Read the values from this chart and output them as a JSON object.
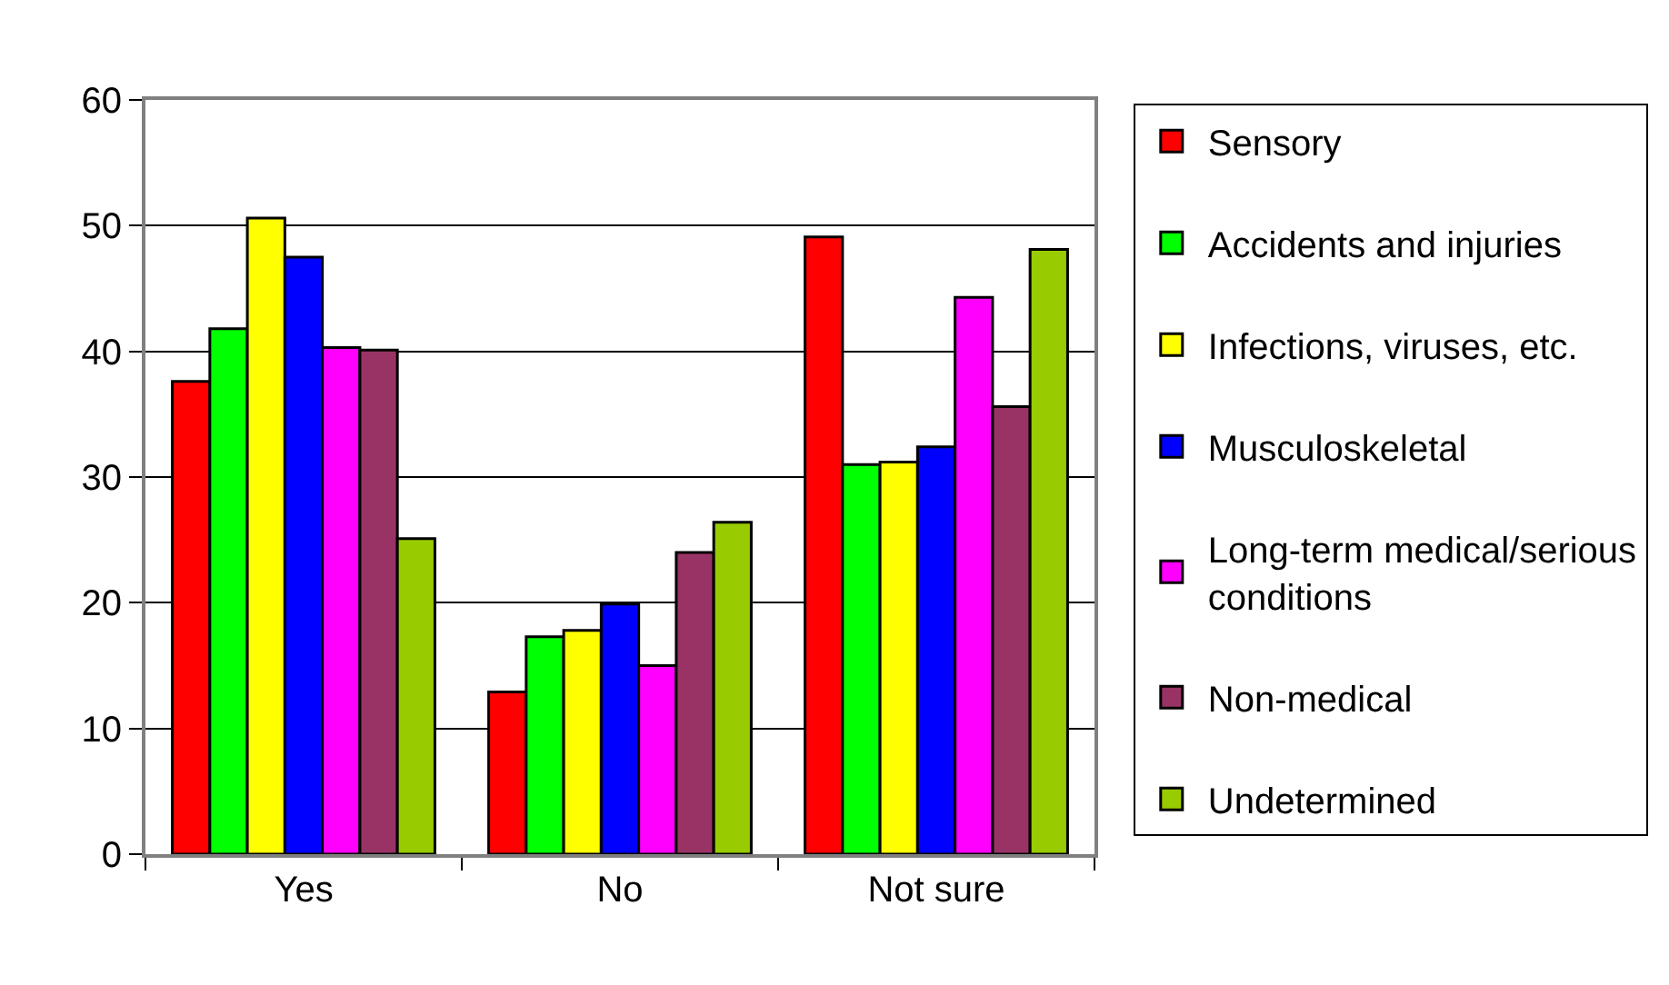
{
  "chart_data": {
    "type": "bar",
    "categories": [
      "Yes",
      "No",
      "Not sure"
    ],
    "series": [
      {
        "name": "Sensory",
        "color": "#ff0000",
        "values": [
          37.6,
          12.9,
          49.1
        ]
      },
      {
        "name": "Accidents and injuries",
        "color": "#00ff00",
        "values": [
          41.8,
          17.3,
          31.0
        ]
      },
      {
        "name": "Infections, viruses, etc.",
        "color": "#ffff00",
        "values": [
          50.6,
          17.8,
          31.2
        ]
      },
      {
        "name": "Musculoskeletal",
        "color": "#0000ff",
        "values": [
          47.5,
          19.9,
          32.4
        ]
      },
      {
        "name": "Long-term medical/serious conditions",
        "color": "#ff00ff",
        "values": [
          40.3,
          15.0,
          44.3
        ]
      },
      {
        "name": "Non-medical",
        "color": "#993366",
        "values": [
          40.1,
          24.0,
          35.6
        ]
      },
      {
        "name": "Undetermined",
        "color": "#99cc00",
        "values": [
          25.1,
          26.4,
          48.1
        ]
      }
    ],
    "ylim": [
      0,
      60
    ],
    "yticks": [
      0,
      10,
      20,
      30,
      40,
      50,
      60
    ],
    "grid": "y",
    "legend": "right"
  }
}
